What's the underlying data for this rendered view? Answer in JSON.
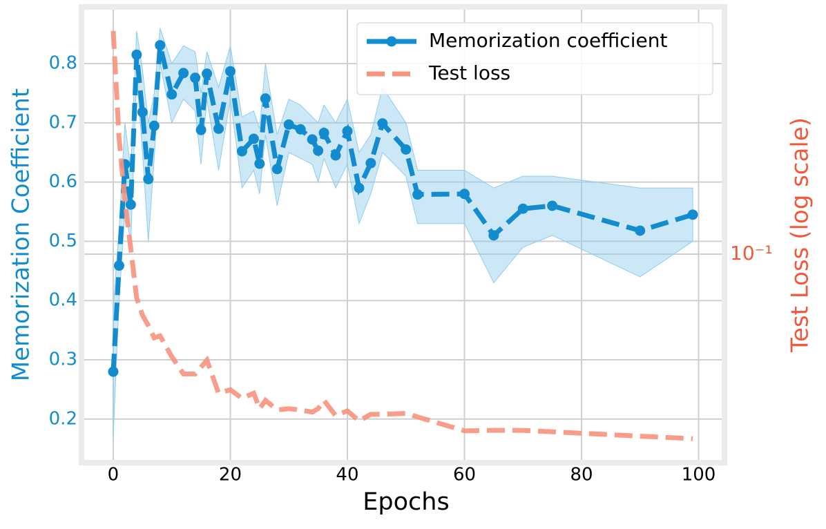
{
  "chart_data": {
    "type": "line",
    "xlabel": "Epochs",
    "ylabel": "Memorization Coefficient",
    "y2label": "Test Loss (log scale)",
    "x": [
      0,
      1,
      2,
      3,
      4,
      5,
      6,
      7,
      8,
      10,
      12,
      14,
      15,
      16,
      18,
      20,
      22,
      24,
      25,
      26,
      28,
      30,
      32,
      34,
      35,
      36,
      38,
      40,
      42,
      44,
      46,
      50,
      52,
      60,
      65,
      70,
      75,
      90,
      99
    ],
    "series": [
      {
        "name": "Memorization coefficient",
        "color": "#138bcf",
        "band_color": "#8fcdee",
        "marker": true,
        "dash": "dashed",
        "values": [
          0.28,
          0.459,
          0.63,
          0.562,
          0.815,
          0.718,
          0.605,
          0.695,
          0.831,
          0.748,
          0.784,
          0.776,
          0.688,
          0.783,
          0.69,
          0.787,
          0.652,
          0.673,
          0.631,
          0.741,
          0.622,
          0.697,
          0.689,
          0.672,
          0.653,
          0.683,
          0.645,
          0.686,
          0.59,
          0.632,
          0.699,
          0.655,
          0.579,
          0.58,
          0.51,
          0.555,
          0.56,
          0.518,
          0.545
        ],
        "lower": [
          0.17,
          0.4,
          0.55,
          0.5,
          0.78,
          0.65,
          0.5,
          0.64,
          0.8,
          0.7,
          0.74,
          0.72,
          0.63,
          0.74,
          0.62,
          0.74,
          0.59,
          0.62,
          0.58,
          0.68,
          0.56,
          0.65,
          0.64,
          0.63,
          0.6,
          0.64,
          0.59,
          0.63,
          0.53,
          0.58,
          0.65,
          0.61,
          0.53,
          0.53,
          0.43,
          0.49,
          0.51,
          0.44,
          0.5
        ],
        "upper": [
          0.39,
          0.52,
          0.7,
          0.62,
          0.855,
          0.79,
          0.7,
          0.75,
          0.86,
          0.8,
          0.83,
          0.82,
          0.75,
          0.82,
          0.76,
          0.83,
          0.71,
          0.72,
          0.69,
          0.8,
          0.68,
          0.74,
          0.73,
          0.71,
          0.7,
          0.73,
          0.7,
          0.74,
          0.65,
          0.68,
          0.76,
          0.7,
          0.62,
          0.62,
          0.59,
          0.61,
          0.61,
          0.59,
          0.59
        ]
      },
      {
        "name": "Test loss",
        "color": "#f7927c",
        "marker": false,
        "dash": "dashed",
        "axis": "y2",
        "values": [
          0.344,
          0.19,
          0.134,
          0.103,
          0.0785,
          0.0713,
          0.0673,
          0.0629,
          0.0636,
          0.0567,
          0.0515,
          0.0515,
          0.0535,
          0.0556,
          0.0463,
          0.0472,
          0.045,
          0.0463,
          0.0425,
          0.0445,
          0.0422,
          0.0425,
          0.0422,
          0.0417,
          0.0425,
          0.0445,
          0.0409,
          0.042,
          0.0397,
          0.0412,
          0.0412,
          0.0414,
          0.0406,
          0.0376,
          0.0377,
          0.0377,
          0.0374,
          0.0365,
          0.036
        ]
      }
    ],
    "xlim": [
      -4.95,
      103.95
    ],
    "xticks": [
      0,
      20,
      40,
      60,
      80,
      100
    ],
    "ylim": [
      0.131,
      0.891
    ],
    "yticks": [
      0.2,
      0.3,
      0.4,
      0.5,
      0.6,
      0.7,
      0.8
    ],
    "y2lim": [
      0.032,
      0.387
    ],
    "y2scale": "log",
    "y2ticks": [
      {
        "value": 0.1,
        "label": "10⁻¹"
      }
    ],
    "grid": true,
    "legend": "upper right",
    "ylabel_color": "#138bcf",
    "y2label_color": "#f05a3c"
  }
}
